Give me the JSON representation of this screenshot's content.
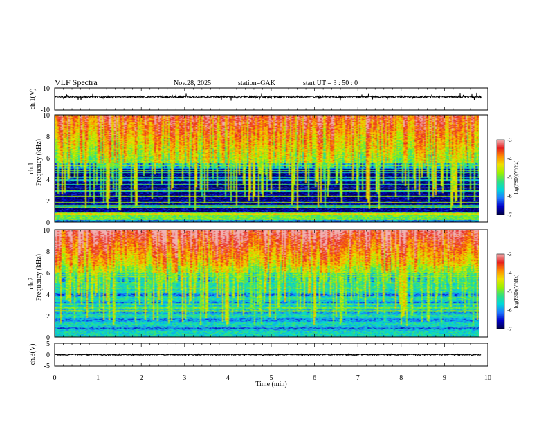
{
  "header": {
    "title": "VLF  Spectra",
    "date": "Nov.28, 2025",
    "station": "station=GAK",
    "start": "start  UT =   3  : 50 : 0"
  },
  "chart_data": [
    {
      "type": "line",
      "name": "ch1-waveform",
      "ylabel": "ch.1(V)",
      "yticks": [
        "10",
        "-10"
      ],
      "ylim": [
        -10,
        10
      ],
      "xlim": [
        0,
        10
      ],
      "baseline": 2
    },
    {
      "type": "heatmap",
      "name": "ch1-spectrogram",
      "ylabel": "Frequency  (kHz)",
      "channel_label": "ch.1",
      "yticks": [
        "10",
        "8",
        "6",
        "4",
        "2",
        "0"
      ],
      "ylim": [
        0,
        10
      ],
      "xlim": [
        0,
        10
      ],
      "data_end_min": 9.85,
      "colorbar": {
        "label": "log(PSD)(V²/Hz)",
        "ticks": [
          "-3",
          "-4",
          "-5",
          "-6",
          "-7"
        ],
        "range": [
          -7,
          -3
        ]
      }
    },
    {
      "type": "heatmap",
      "name": "ch2-spectrogram",
      "ylabel": "Frequency  (kHz)",
      "channel_label": "ch.2",
      "yticks": [
        "10",
        "8",
        "6",
        "4",
        "2",
        "0"
      ],
      "ylim": [
        0,
        10
      ],
      "xlim": [
        0,
        10
      ],
      "data_end_min": 9.85,
      "colorbar": {
        "label": "log(PSD)(V²/Hz)",
        "ticks": [
          "-3",
          "-4",
          "-5",
          "-6",
          "-7"
        ],
        "range": [
          -7,
          -3
        ]
      }
    },
    {
      "type": "line",
      "name": "ch3-waveform",
      "ylabel": "ch.3(V)",
      "yticks": [
        "5",
        "0",
        "-5"
      ],
      "ylim": [
        -5,
        5
      ],
      "xlim": [
        0,
        10
      ],
      "baseline": 0
    }
  ],
  "xaxis": {
    "label": "Time  (min)",
    "ticks": [
      "0",
      "1",
      "2",
      "3",
      "4",
      "5",
      "6",
      "7",
      "8",
      "9",
      "10"
    ],
    "range": [
      0,
      10
    ]
  },
  "colors": {
    "colormap": [
      "#00004a",
      "#0000c8",
      "#1e7bff",
      "#00d8d8",
      "#30e080",
      "#9cf000",
      "#f0e000",
      "#ff8c00",
      "#e61e1e",
      "#f0b4b4"
    ]
  }
}
